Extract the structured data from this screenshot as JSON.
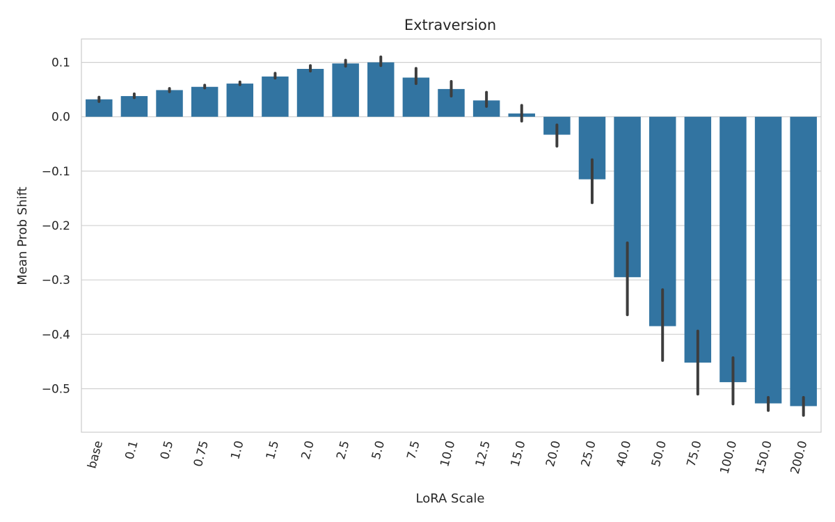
{
  "chart_data": {
    "type": "bar",
    "title": "Extraversion",
    "xlabel": "LoRA Scale",
    "ylabel": "Mean Prob Shift",
    "categories": [
      "base",
      "0.1",
      "0.5",
      "0.75",
      "1.0",
      "1.5",
      "2.0",
      "2.5",
      "5.0",
      "7.5",
      "10.0",
      "12.5",
      "15.0",
      "20.0",
      "25.0",
      "40.0",
      "50.0",
      "75.0",
      "100.0",
      "150.0",
      "200.0"
    ],
    "values": [
      0.032,
      0.038,
      0.049,
      0.055,
      0.061,
      0.074,
      0.088,
      0.098,
      0.1,
      0.072,
      0.051,
      0.03,
      0.006,
      -0.033,
      -0.115,
      -0.295,
      -0.385,
      -0.452,
      -0.488,
      -0.527,
      -0.532
    ],
    "error_low": [
      0.028,
      0.035,
      0.046,
      0.053,
      0.059,
      0.071,
      0.084,
      0.093,
      0.094,
      0.061,
      0.038,
      0.019,
      -0.008,
      -0.054,
      -0.158,
      -0.364,
      -0.448,
      -0.51,
      -0.528,
      -0.54,
      -0.549
    ],
    "error_high": [
      0.036,
      0.042,
      0.052,
      0.058,
      0.064,
      0.08,
      0.094,
      0.104,
      0.11,
      0.089,
      0.065,
      0.045,
      0.021,
      -0.015,
      -0.079,
      -0.232,
      -0.318,
      -0.394,
      -0.443,
      -0.516,
      -0.516
    ],
    "yticks": [
      0.1,
      0.0,
      -0.1,
      -0.2,
      -0.3,
      -0.4,
      -0.5
    ],
    "ytick_labels": [
      "0.1",
      "0.0",
      "−0.1",
      "−0.2",
      "−0.3",
      "−0.4",
      "−0.5"
    ],
    "ylim": [
      -0.58,
      0.143
    ],
    "grid": true,
    "bar_color": "#3274a1",
    "error_color": "#3d3d3d",
    "grid_color": "#d0d0d0",
    "text_color": "#262626"
  }
}
